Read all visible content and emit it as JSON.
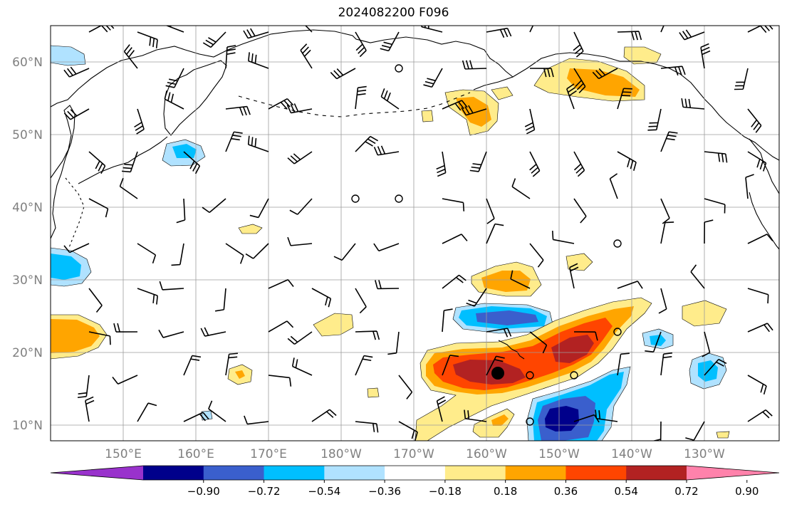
{
  "title": "2024082200 F096",
  "lat_labels": [
    "60°N",
    "50°N",
    "40°N",
    "30°N",
    "20°N",
    "10°N"
  ],
  "lon_labels": [
    "150°E",
    "160°E",
    "170°E",
    "180°W",
    "170°W",
    "160°W",
    "150°W",
    "140°W",
    "130°W"
  ],
  "colorbar": {
    "ticks": [
      "−0.90",
      "−0.72",
      "−0.54",
      "−0.36",
      "−0.18",
      "0.18",
      "0.36",
      "0.54",
      "0.72",
      "0.90"
    ],
    "colors": [
      "#9932cc",
      "#00008b",
      "#3a5fcd",
      "#00bfff",
      "#b0e2ff",
      "#ffffff",
      "#ffec8b",
      "#ffa500",
      "#ff4500",
      "#b22222",
      "#ff82ab"
    ]
  },
  "colors": {
    "light_blue": "#b0e2ff",
    "blue": "#00bfff",
    "royal_blue": "#3a5fcd",
    "navy": "#00008b",
    "pale_yellow": "#ffec8b",
    "orange": "#ffa500",
    "orange_red": "#ff4500",
    "firebrick": "#b22222"
  },
  "marker": {
    "label": "storm-center"
  }
}
